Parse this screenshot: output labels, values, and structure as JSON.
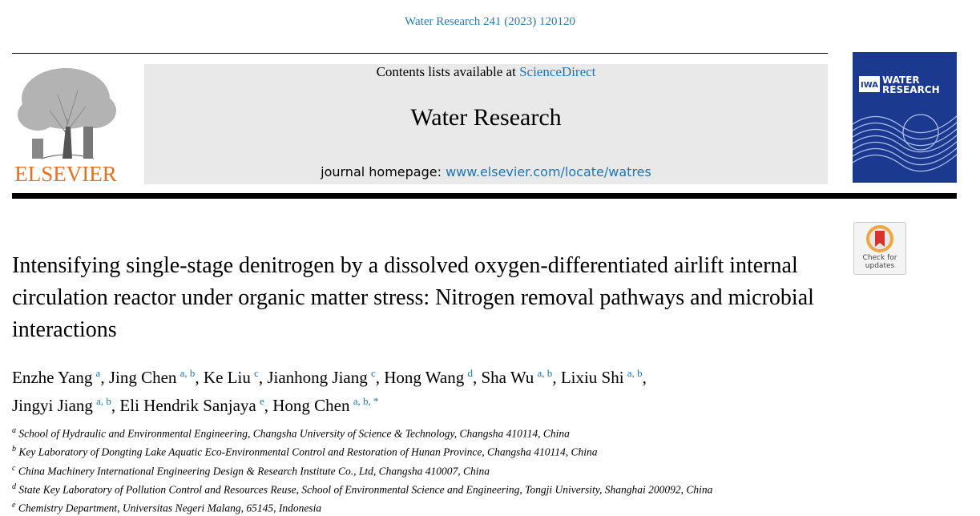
{
  "header": {
    "citation": "Water Research 241 (2023) 120120",
    "contents_prefix": "Contents lists available at",
    "contents_link": "ScienceDirect",
    "journal": "Water Research",
    "homepage_prefix": "journal homepage:",
    "homepage_link": "www.elsevier.com/locate/watres",
    "publisher": "ELSEVIER",
    "cover_logo": "IWA",
    "cover_title_lines": [
      "WATER",
      "RESEARCH"
    ],
    "check_updates_lines": [
      "Check for",
      "updates"
    ]
  },
  "title": "Intensifying single-stage denitrogen by a dissolved oxygen-differentiated airlift internal circulation reactor under organic matter stress: Nitrogen removal pathways and microbial interactions",
  "authors": {
    "separator": ",",
    "list": [
      {
        "name": "Enzhe Yang",
        "affil": "a"
      },
      {
        "name": "Jing Chen",
        "affil": "a, b"
      },
      {
        "name": "Ke Liu",
        "affil": "c"
      },
      {
        "name": "Jianhong Jiang",
        "affil": "c"
      },
      {
        "name": "Hong Wang",
        "affil": "d"
      },
      {
        "name": "Sha Wu",
        "affil": "a, b"
      },
      {
        "name": "Lixiu Shi",
        "affil": "a, b"
      },
      {
        "name": "Jingyi Jiang",
        "affil": "a, b"
      },
      {
        "name": "Eli Hendrik Sanjaya",
        "affil": "e"
      },
      {
        "name": "Hong Chen",
        "affil": "a, b, *"
      }
    ]
  },
  "affiliations": [
    {
      "key": "a",
      "text": "School of Hydraulic and Environmental Engineering, Changsha University of Science & Technology, Changsha 410114, China"
    },
    {
      "key": "b",
      "text": "Key Laboratory of Dongting Lake Aquatic Eco-Environmental Control and Restoration of Hunan Province, Changsha 410114, China"
    },
    {
      "key": "c",
      "text": "China Machinery International Engineering Design & Research Institute Co., Ltd, Changsha 410007, China"
    },
    {
      "key": "d",
      "text": "State Key Laboratory of Pollution Control and Resources Reuse, School of Environmental Science and Engineering, Tongji University, Shanghai 200092, China"
    },
    {
      "key": "e",
      "text": "Chemistry Department, Universitas Negeri Malang, 65145, Indonesia"
    }
  ]
}
